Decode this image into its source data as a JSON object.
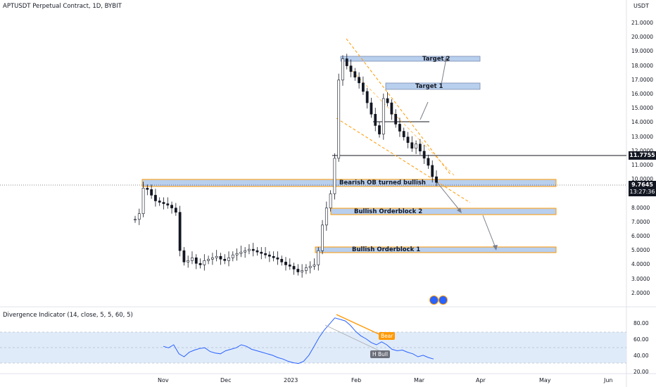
{
  "header": {
    "symbol_title": "APTUSDT Perpetual Contract, 1D, BYBIT",
    "currency": "USDT"
  },
  "price_axis": {
    "ticks": [
      "21.0000",
      "20.0000",
      "19.0000",
      "18.0000",
      "17.0000",
      "16.0000",
      "15.0000",
      "14.0000",
      "13.0000",
      "12.0000",
      "11.0000",
      "10.0000",
      "9.0000",
      "8.0000",
      "7.0000",
      "6.0000",
      "5.0000",
      "4.0000",
      "3.0000",
      "2.0000"
    ],
    "level_label": "11.7755",
    "last_price": "9.7645",
    "countdown": "13:27:36"
  },
  "time_axis": {
    "ticks": [
      "Nov",
      "Dec",
      "2023",
      "Feb",
      "Mar",
      "Apr",
      "May",
      "Jun"
    ]
  },
  "annotations": {
    "target2": "Target 2",
    "target1": "Target 1",
    "bearish_ob": "Bearish OB turned bullish",
    "bullish_ob2": "Bullish Orderblock 2",
    "bullish_ob1": "Bullish Orderblock 1"
  },
  "indicator": {
    "title": "Divergence Indicator (14, close, 5, 5, 60, 5)",
    "ticks": [
      "80.00",
      "60.00",
      "40.00",
      "20.00"
    ],
    "bear_label": "Bear",
    "hbull_label": "H Bull"
  },
  "colors": {
    "up": "#131722",
    "zone_fill": "#b8cfee",
    "zone_border": "#ff9800",
    "rsi_line": "#2962ff",
    "band": "#dbe7f8",
    "bear": "#ff9800"
  },
  "chart_data": {
    "type": "candlestick",
    "y_range": [
      1.5,
      21.5
    ],
    "close_series": [
      7.2,
      7.6,
      9.4,
      9.3,
      8.9,
      8.5,
      8.4,
      8.3,
      8.2,
      8.0,
      7.7,
      5.0,
      4.2,
      4.3,
      4.5,
      4.1,
      4.0,
      4.3,
      4.4,
      4.5,
      4.6,
      4.4,
      4.3,
      4.5,
      4.7,
      4.8,
      4.9,
      5.0,
      5.1,
      5.0,
      4.9,
      4.8,
      4.7,
      4.6,
      4.5,
      4.4,
      4.2,
      4.0,
      3.9,
      3.7,
      3.5,
      3.6,
      3.8,
      3.9,
      4.0,
      5.0,
      6.8,
      8.0,
      9.0,
      11.5,
      17.0,
      18.5,
      18.0,
      17.6,
      17.2,
      16.8,
      16.2,
      15.4,
      14.6,
      13.8,
      13.2,
      15.7,
      15.4,
      14.6,
      13.9,
      13.4,
      13.0,
      12.6,
      12.2,
      12.5,
      12.0,
      11.5,
      11.0,
      10.2,
      9.8
    ],
    "rsi_values": [
      50,
      48,
      52,
      40,
      36,
      42,
      45,
      47,
      48,
      43,
      41,
      40,
      44,
      46,
      48,
      52,
      50,
      46,
      44,
      42,
      40,
      38,
      35,
      33,
      30,
      28,
      27,
      30,
      38,
      50,
      62,
      72,
      80,
      88,
      86,
      84,
      78,
      70,
      64,
      60,
      55,
      52,
      56,
      52,
      46,
      44,
      45,
      42,
      40,
      36,
      38,
      35,
      33
    ],
    "zones": [
      {
        "name": "Target 2",
        "top": 18.6,
        "bottom": 18.2
      },
      {
        "name": "Target 1",
        "top": 16.7,
        "bottom": 16.2
      },
      {
        "name": "Bearish OB turned bullish",
        "top": 10.3,
        "bottom": 9.7
      },
      {
        "name": "Bullish Orderblock 2",
        "top": 8.2,
        "bottom": 7.7
      },
      {
        "name": "Bullish Orderblock 1",
        "top": 5.5,
        "bottom": 5.1
      }
    ],
    "horizontal_levels": [
      11.7755,
      9.7645
    ]
  }
}
